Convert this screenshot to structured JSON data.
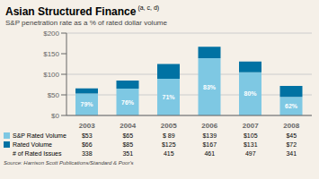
{
  "chart_data": {
    "type": "bar",
    "stacked": true,
    "title": "Asian Structured Finance",
    "title_superscript": "(a, c, d)",
    "subtitle": "S&P penetration rate as a % of rated dollar volume",
    "categories": [
      "2003",
      "2004",
      "2005",
      "2006",
      "2007",
      "2008"
    ],
    "series": [
      {
        "name": "S&P Rated Volume",
        "color": "#7EC8E3",
        "values": [
          53,
          65,
          89,
          139,
          105,
          45
        ],
        "table_labels": [
          "$53",
          "$65",
          "$ 89",
          "$139",
          "$105",
          "$45"
        ]
      },
      {
        "name": "Rated Volume",
        "color": "#0072A3",
        "values": [
          13,
          20,
          36,
          28,
          26,
          27
        ],
        "totals": [
          66,
          85,
          125,
          167,
          131,
          72
        ],
        "total_labels": [
          "$66",
          "$85",
          "$125",
          "$167",
          "$131",
          "$72"
        ]
      }
    ],
    "penetration_pct": [
      79,
      76,
      71,
      83,
      80,
      62
    ],
    "penetration_labels": [
      "79%",
      "76%",
      "71%",
      "83%",
      "80%",
      "62%"
    ],
    "rated_issues_label": "# of Rated Issues",
    "rated_issues": [
      338,
      351,
      415,
      461,
      497,
      341
    ],
    "ylim": [
      0,
      200
    ],
    "yticks": [
      {
        "value": 0,
        "label": "$0"
      },
      {
        "value": 50,
        "label": "$50"
      },
      {
        "value": 100,
        "label": "$100"
      },
      {
        "value": 150,
        "label": "$150"
      },
      {
        "value": 200,
        "label": "$200"
      }
    ],
    "grid": true,
    "background_color": "#F5F0E8",
    "source": "Source: Harrison Scott Publications/Standard & Poor's"
  }
}
